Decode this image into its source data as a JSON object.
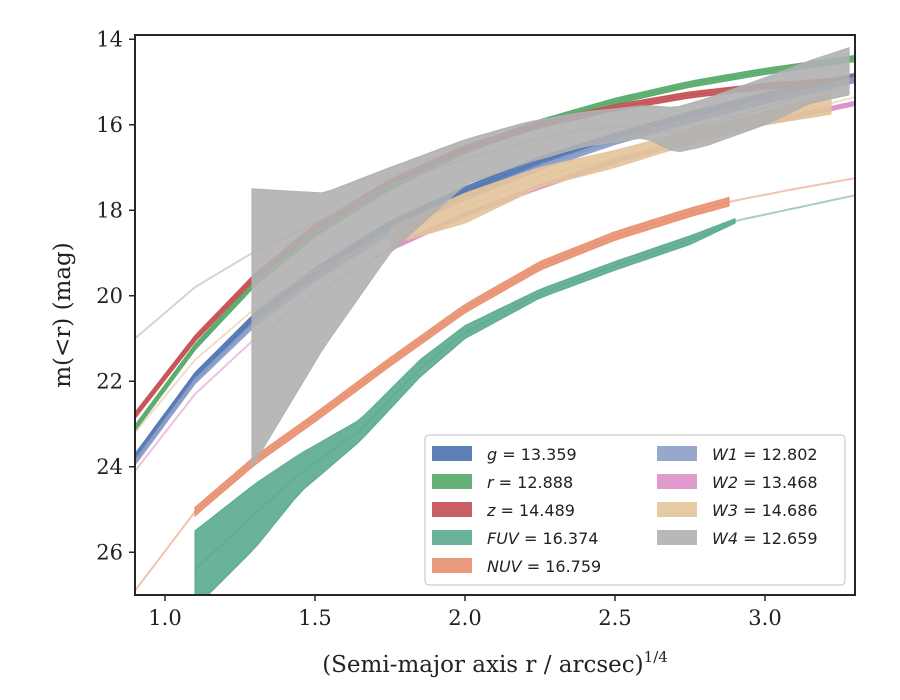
{
  "chart_data": {
    "type": "line",
    "xlabel": "(Semi-major axis r / arcsec)",
    "xlabel_exponent": "1/4",
    "ylabel": "m(<r) (mag)",
    "xlim": [
      0.9,
      3.3
    ],
    "ylim": [
      27.0,
      13.9
    ],
    "y_inverted": true,
    "xticks": [
      1.0,
      1.5,
      2.0,
      2.5,
      3.0
    ],
    "xtick_labels": [
      "1.0",
      "1.5",
      "2.0",
      "2.5",
      "3.0"
    ],
    "yticks": [
      14,
      16,
      18,
      20,
      22,
      24,
      26
    ],
    "ytick_labels": [
      "14",
      "16",
      "18",
      "20",
      "22",
      "24",
      "26"
    ],
    "grid": false,
    "legend_position": "lower-right",
    "legend_columns": 2,
    "series": [
      {
        "name": "g",
        "value": "13.359",
        "color": "#4c72b0",
        "x": [
          0.9,
          1.1,
          1.3,
          1.5,
          1.75,
          2.0,
          2.25,
          2.5,
          2.75,
          3.0,
          3.3
        ],
        "y": [
          23.8,
          21.9,
          20.5,
          19.45,
          18.35,
          17.55,
          16.85,
          16.3,
          15.8,
          15.35,
          14.9
        ],
        "band_half_width": 0.1,
        "solid_x_range": [
          0.9,
          3.3
        ]
      },
      {
        "name": "r",
        "value": "12.888",
        "color": "#55a868",
        "x": [
          0.9,
          1.1,
          1.3,
          1.5,
          1.75,
          2.0,
          2.25,
          2.5,
          2.75,
          3.0,
          3.3
        ],
        "y": [
          23.1,
          21.2,
          19.7,
          18.55,
          17.45,
          16.6,
          15.95,
          15.45,
          15.05,
          14.75,
          14.45
        ],
        "band_half_width": 0.07,
        "solid_x_range": [
          0.9,
          3.3
        ]
      },
      {
        "name": "z",
        "value": "14.489",
        "color": "#c44e52",
        "x": [
          0.9,
          1.1,
          1.3,
          1.5,
          1.75,
          2.0,
          2.25,
          2.5,
          2.75,
          3.0,
          3.3
        ],
        "y": [
          22.8,
          21.0,
          19.55,
          18.4,
          17.35,
          16.55,
          16.0,
          15.6,
          15.3,
          15.1,
          14.95
        ],
        "band_half_width": 0.07,
        "solid_x_range": [
          0.9,
          3.3
        ]
      },
      {
        "name": "FUV",
        "value": "16.374",
        "color": "#5aaa8f",
        "x": [
          1.1,
          1.3,
          1.45,
          1.65,
          1.85,
          2.0,
          2.25,
          2.5,
          2.75,
          2.9,
          3.1,
          3.3
        ],
        "y": [
          26.4,
          25.1,
          24.15,
          23.15,
          21.7,
          20.85,
          19.95,
          19.3,
          18.7,
          18.25,
          17.95,
          17.65
        ],
        "band_lower": [
          25.5,
          24.4,
          23.7,
          22.9,
          21.5,
          20.7,
          19.85,
          19.2,
          18.6,
          18.2,
          17.9,
          17.6
        ],
        "band_upper": [
          27.3,
          25.9,
          24.6,
          23.4,
          21.9,
          21.0,
          20.05,
          19.4,
          18.8,
          18.3,
          18.0,
          17.7
        ],
        "solid_x_range": [
          1.1,
          2.9
        ]
      },
      {
        "name": "NUV",
        "value": "16.759",
        "color": "#e8906f",
        "x": [
          0.9,
          1.1,
          1.3,
          1.5,
          1.75,
          2.0,
          2.25,
          2.5,
          2.75,
          2.88,
          3.1,
          3.3
        ],
        "y": [
          26.9,
          25.05,
          23.85,
          22.85,
          21.55,
          20.3,
          19.3,
          18.6,
          18.05,
          17.8,
          17.5,
          17.25
        ],
        "band_half_width": 0.1,
        "band_half_width_start": 0.25,
        "solid_x_range": [
          1.1,
          2.88
        ]
      },
      {
        "name": "W1",
        "value": "12.802",
        "color": "#8c9dc8",
        "x": [
          0.9,
          1.1,
          1.3,
          1.5,
          1.75,
          2.0,
          2.25,
          2.5,
          2.75,
          3.0,
          3.3
        ],
        "y": [
          23.9,
          22.0,
          20.65,
          19.6,
          18.5,
          17.7,
          17.0,
          16.4,
          15.9,
          15.45,
          14.95
        ],
        "band_half_width": 0.06,
        "solid_x_range": [
          0.9,
          3.3
        ]
      },
      {
        "name": "W2",
        "value": "13.468",
        "color": "#dd8fc8",
        "x": [
          0.9,
          1.1,
          1.3,
          1.5,
          1.75,
          2.0,
          2.25,
          2.5,
          2.75,
          3.0,
          3.3
        ],
        "y": [
          24.1,
          22.3,
          21.0,
          19.95,
          18.9,
          18.1,
          17.45,
          16.85,
          16.35,
          15.95,
          15.5
        ],
        "band_half_width": 0.05,
        "solid_x_range": [
          1.75,
          3.3
        ]
      },
      {
        "name": "W3",
        "value": "14.686",
        "color": "#e2c49a",
        "x": [
          0.9,
          1.1,
          1.3,
          1.5,
          1.75,
          2.0,
          2.25,
          2.5,
          2.75,
          3.0,
          3.22,
          3.3
        ],
        "y": [
          23.2,
          21.5,
          20.3,
          19.4,
          18.6,
          17.95,
          17.2,
          16.8,
          16.3,
          15.85,
          15.5,
          15.35
        ],
        "band_lower": [
          23.15,
          21.45,
          20.25,
          19.3,
          18.4,
          17.6,
          17.0,
          16.6,
          16.15,
          15.7,
          15.25,
          15.3
        ],
        "band_upper": [
          23.25,
          21.55,
          20.35,
          19.5,
          18.8,
          18.3,
          17.45,
          17.0,
          16.45,
          16.0,
          15.75,
          15.4
        ],
        "solid_x_range": [
          1.75,
          3.22
        ]
      },
      {
        "name": "W4",
        "value": "12.659",
        "color": "#b0b0b0",
        "x": [
          0.9,
          1.1,
          1.29,
          1.53,
          1.75,
          2.0,
          2.2,
          2.4,
          2.6,
          2.7,
          2.8,
          3.0,
          3.15,
          3.28
        ],
        "y": [
          21.0,
          19.8,
          19.0,
          18.2,
          17.4,
          16.8,
          16.4,
          16.1,
          16.0,
          16.2,
          16.0,
          15.6,
          15.3,
          15.1
        ],
        "band_lower": [
          21.0,
          19.8,
          17.5,
          17.6,
          17.0,
          16.35,
          15.95,
          15.7,
          15.55,
          15.6,
          15.4,
          14.9,
          14.5,
          14.2
        ],
        "band_upper": [
          21.0,
          19.8,
          24.0,
          21.2,
          19.0,
          17.4,
          16.9,
          16.5,
          16.3,
          16.65,
          16.5,
          16.0,
          15.5,
          15.3
        ],
        "solid_x_range": [
          1.29,
          3.28
        ]
      }
    ]
  }
}
